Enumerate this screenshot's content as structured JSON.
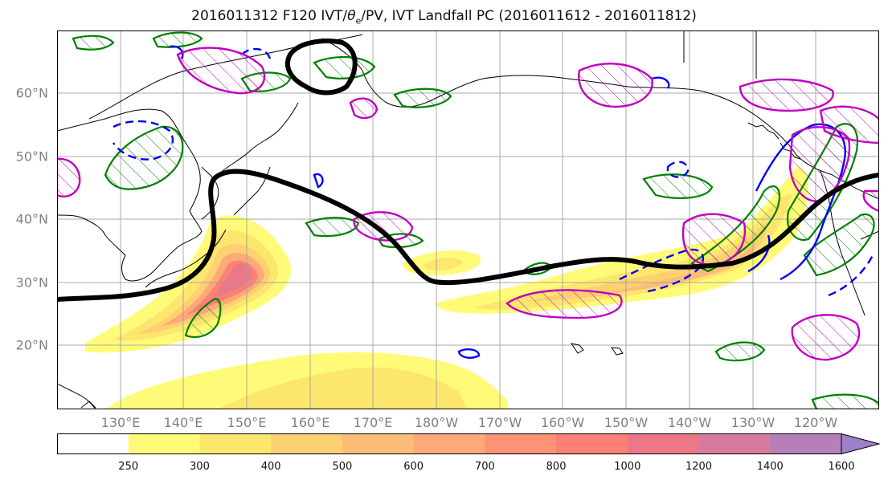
{
  "title_main": "2016011312 F120 IVT/",
  "title_theta": "θ",
  "title_sub": "e",
  "title_rest": "/PV, IVT Landfall PC (2016011612 - 2016011812)",
  "lat_labels": [
    "60°N",
    "50°N",
    "40°N",
    "30°N",
    "20°N"
  ],
  "lat_values": [
    60,
    50,
    40,
    30,
    20
  ],
  "lon_labels": [
    "130°E",
    "140°E",
    "150°E",
    "160°E",
    "170°E",
    "180°W",
    "170°W",
    "160°W",
    "150°W",
    "140°W",
    "130°W",
    "120°W"
  ],
  "lon_values": [
    130,
    140,
    150,
    160,
    170,
    180,
    190,
    200,
    210,
    220,
    230,
    240
  ],
  "map_extent": {
    "lon_min": 120,
    "lon_max": 250,
    "lat_min": 10,
    "lat_max": 69
  },
  "colorbar": {
    "levels": [
      "250",
      "300",
      "400",
      "500",
      "600",
      "700",
      "800",
      "1000",
      "1200",
      "1400",
      "1600"
    ],
    "colors": [
      "#ffffff",
      "#fffb78",
      "#fde66e",
      "#fdd071",
      "#fdbd78",
      "#fea978",
      "#fd9276",
      "#fd8076",
      "#ec7887",
      "#d87a9e",
      "#b57fb8",
      "#9d80c9"
    ]
  },
  "colors": {
    "pv_anomaly": "#008000",
    "theta_e_pos": "#0000ff",
    "theta_e_neg": "#0000ff",
    "pc_contour": "#c000c0",
    "jet_line": "#000000",
    "coast": "#000000",
    "grid": "#a0a0a0"
  }
}
